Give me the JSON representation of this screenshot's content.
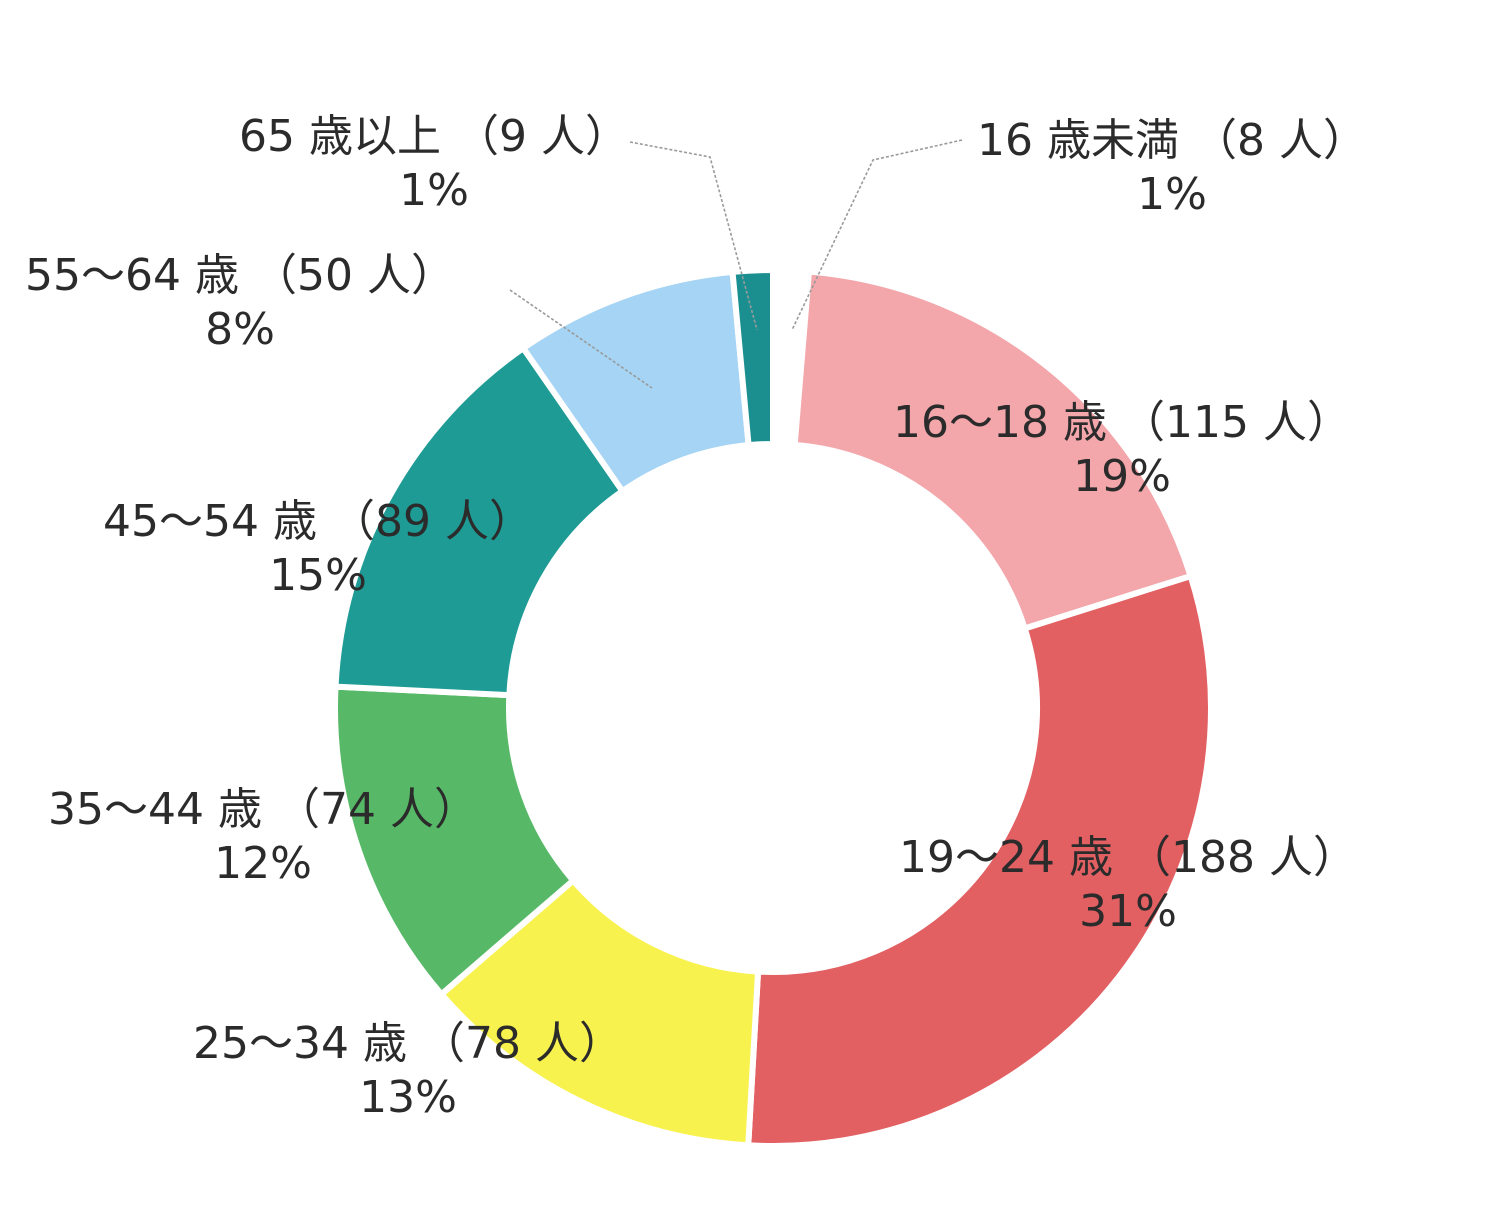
{
  "chart_data": {
    "type": "pie",
    "title": "",
    "unit": "人",
    "slices": [
      {
        "label": "16 歳未満",
        "value": 8,
        "count_label": "（8 人）",
        "percent_label": "1%",
        "color": "#ffffff"
      },
      {
        "label": "16～18 歳",
        "value": 115,
        "count_label": "（115 人）",
        "percent_label": "19%",
        "color": "#f3a7ab"
      },
      {
        "label": "19～24 歳",
        "value": 188,
        "count_label": "（188 人）",
        "percent_label": "31%",
        "color": "#e25f62"
      },
      {
        "label": "25～34 歳",
        "value": 78,
        "count_label": "（78 人）",
        "percent_label": "13%",
        "color": "#f8f24e"
      },
      {
        "label": "35～44 歳",
        "value": 74,
        "count_label": "（74 人）",
        "percent_label": "12%",
        "color": "#57b967"
      },
      {
        "label": "45～54 歳",
        "value": 89,
        "count_label": "（89 人）",
        "percent_label": "15%",
        "color": "#1f9b95"
      },
      {
        "label": "55～64 歳",
        "value": 50,
        "count_label": "（50 人）",
        "percent_label": "8%",
        "color": "#a5d4f4"
      },
      {
        "label": "65 歳以上",
        "value": 9,
        "count_label": "（9 人）",
        "percent_label": "1%",
        "color": "#1b8f90"
      }
    ]
  }
}
